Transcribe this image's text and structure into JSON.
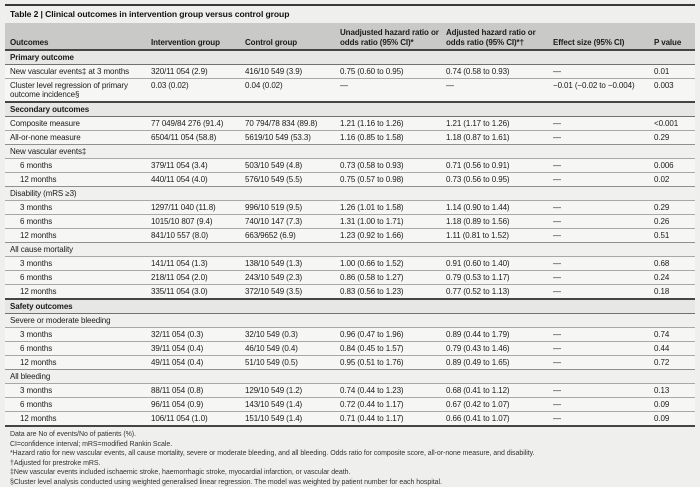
{
  "colors": {
    "page_bg": "#efefed",
    "header_band": "#c9c9c7",
    "section_band": "#e7e7e5",
    "data_band": "#f6f6f4",
    "rule_dark": "#454543",
    "rule_light": "#a8a8a6",
    "text": "#1b1b19"
  },
  "table": {
    "title": "Table 2 | Clinical outcomes in intervention group versus control group",
    "columns": [
      {
        "label": "Outcomes"
      },
      {
        "label": "Intervention group"
      },
      {
        "label": "Control group"
      },
      {
        "label": "Unadjusted hazard ratio or odds ratio (95% CI)*"
      },
      {
        "label": "Adjusted hazard ratio or odds ratio (95% CI)*†"
      },
      {
        "label": "Effect size (95% CI)"
      },
      {
        "label": "P value"
      }
    ],
    "rows": [
      {
        "type": "section",
        "label": "Primary outcome"
      },
      {
        "type": "data",
        "indent": false,
        "cells": [
          "New vascular events‡ at 3 months",
          "320/11 054 (2.9)",
          "416/10 549 (3.9)",
          "0.75 (0.60 to 0.95)",
          "0.74 (0.58 to 0.93)",
          "—",
          "0.01"
        ]
      },
      {
        "type": "data",
        "indent": false,
        "cells": [
          "Cluster level regression of primary outcome incidence§",
          "0.03 (0.02)",
          "0.04 (0.02)",
          "—",
          "—",
          "−0.01 (−0.02 to −0.004)",
          "0.003"
        ]
      },
      {
        "type": "section",
        "label": "Secondary outcomes"
      },
      {
        "type": "data",
        "indent": false,
        "cells": [
          "Composite measure",
          "77 049/84 276 (91.4)",
          "70 794/78 834 (89.8)",
          "1.21 (1.16 to 1.26)",
          "1.21 (1.17 to 1.26)",
          "—",
          "<0.001"
        ]
      },
      {
        "type": "data",
        "indent": false,
        "cells": [
          "All-or-none measure",
          "6504/11 054 (58.8)",
          "5619/10 549 (53.3)",
          "1.16 (0.85 to 1.58)",
          "1.18 (0.87 to 1.61)",
          "—",
          "0.29"
        ]
      },
      {
        "type": "sub",
        "label": "New vascular events‡"
      },
      {
        "type": "data",
        "indent": true,
        "cells": [
          "6 months",
          "379/11 054 (3.4)",
          "503/10 549 (4.8)",
          "0.73 (0.58 to 0.93)",
          "0.71 (0.56 to 0.91)",
          "—",
          "0.006"
        ]
      },
      {
        "type": "data",
        "indent": true,
        "cells": [
          "12 months",
          "440/11 054 (4.0)",
          "576/10 549 (5.5)",
          "0.75 (0.57 to 0.98)",
          "0.73 (0.56 to 0.95)",
          "—",
          "0.02"
        ]
      },
      {
        "type": "sub",
        "label": "Disability (mRS ≥3)"
      },
      {
        "type": "data",
        "indent": true,
        "cells": [
          "3 months",
          "1297/11 040 (11.8)",
          "996/10 519 (9.5)",
          "1.26 (1.01 to 1.58)",
          "1.14 (0.90 to 1.44)",
          "—",
          "0.29"
        ]
      },
      {
        "type": "data",
        "indent": true,
        "cells": [
          "6 months",
          "1015/10 807 (9.4)",
          "740/10 147 (7.3)",
          "1.31 (1.00 to 1.71)",
          "1.18 (0.89 to 1.56)",
          "—",
          "0.26"
        ]
      },
      {
        "type": "data",
        "indent": true,
        "cells": [
          "12 months",
          "841/10 557 (8.0)",
          "663/9652 (6.9)",
          "1.23 (0.92 to 1.66)",
          "1.11 (0.81 to 1.52)",
          "—",
          "0.51"
        ]
      },
      {
        "type": "sub",
        "label": "All cause mortality"
      },
      {
        "type": "data",
        "indent": true,
        "cells": [
          "3 months",
          "141/11 054 (1.3)",
          "138/10 549 (1.3)",
          "1.00 (0.66 to 1.52)",
          "0.91 (0.60 to 1.40)",
          "—",
          "0.68"
        ]
      },
      {
        "type": "data",
        "indent": true,
        "cells": [
          "6 months",
          "218/11 054 (2.0)",
          "243/10 549 (2.3)",
          "0.86 (0.58 to 1.27)",
          "0.79 (0.53 to 1.17)",
          "—",
          "0.24"
        ]
      },
      {
        "type": "data",
        "indent": true,
        "cells": [
          "12 months",
          "335/11 054 (3.0)",
          "372/10 549 (3.5)",
          "0.83 (0.56 to 1.23)",
          "0.77 (0.52 to 1.13)",
          "—",
          "0.18"
        ]
      },
      {
        "type": "section",
        "label": "Safety outcomes"
      },
      {
        "type": "sub",
        "label": "Severe or moderate bleeding"
      },
      {
        "type": "data",
        "indent": true,
        "cells": [
          "3 months",
          "32/11 054 (0.3)",
          "32/10 549 (0.3)",
          "0.96 (0.47 to 1.96)",
          "0.89 (0.44 to 1.79)",
          "—",
          "0.74"
        ]
      },
      {
        "type": "data",
        "indent": true,
        "cells": [
          "6 months",
          "39/11 054 (0.4)",
          "46/10 549 (0.4)",
          "0.84 (0.45 to 1.57)",
          "0.79 (0.43 to 1.46)",
          "—",
          "0.44"
        ]
      },
      {
        "type": "data",
        "indent": true,
        "cells": [
          "12 months",
          "49/11 054 (0.4)",
          "51/10 549 (0.5)",
          "0.95 (0.51 to 1.76)",
          "0.89 (0.49 to 1.65)",
          "—",
          "0.72"
        ]
      },
      {
        "type": "sub",
        "label": "All bleeding"
      },
      {
        "type": "data",
        "indent": true,
        "cells": [
          "3 months",
          "88/11 054 (0.8)",
          "129/10 549 (1.2)",
          "0.74 (0.44 to 1.23)",
          "0.68 (0.41 to 1.12)",
          "—",
          "0.13"
        ]
      },
      {
        "type": "data",
        "indent": true,
        "cells": [
          "6 months",
          "96/11 054 (0.9)",
          "143/10 549 (1.4)",
          "0.72 (0.44 to 1.17)",
          "0.67 (0.42 to 1.07)",
          "—",
          "0.09"
        ]
      },
      {
        "type": "data",
        "indent": true,
        "cells": [
          "12 months",
          "106/11 054 (1.0)",
          "151/10 549 (1.4)",
          "0.71 (0.44 to 1.17)",
          "0.66 (0.41 to 1.07)",
          "—",
          "0.09"
        ]
      }
    ],
    "footnotes": [
      "Data are No of events/No of patients (%).",
      "CI=confidence interval; mRS=modified Rankin Scale.",
      "*Hazard ratio for new vascular events, all cause mortality, severe or moderate bleeding, and all bleeding. Odds ratio for composite score, all-or-none measure, and disability.",
      "†Adjusted for prestroke mRS.",
      "‡New vascular events included ischaemic stroke, haemorrhagic stroke, myocardial infarction, or vascular death.",
      "§Cluster level analysis conducted using weighted generalised linear regression. The model was weighted by patient number for each hospital."
    ]
  }
}
